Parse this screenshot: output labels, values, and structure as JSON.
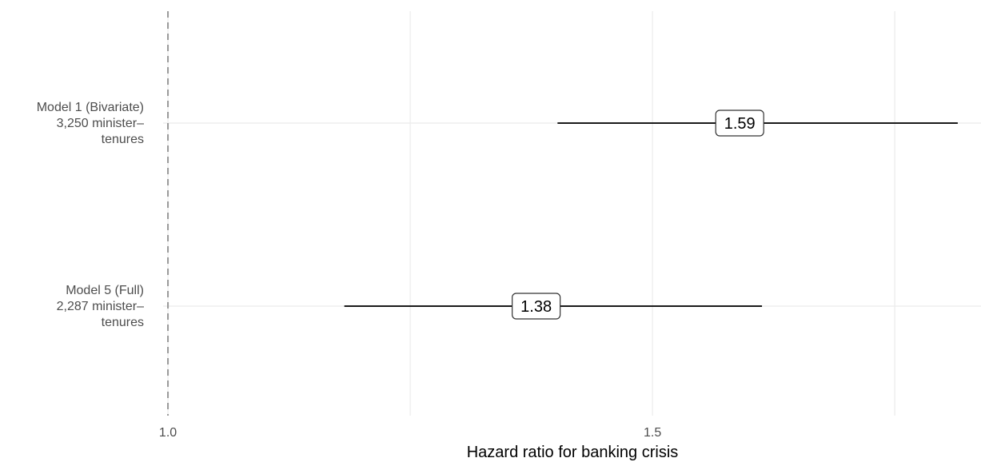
{
  "chart_data": {
    "type": "forest",
    "title": "",
    "xlabel": "Hazard ratio for banking crisis",
    "ylabel": "",
    "xlim": [
      0.995,
      1.839
    ],
    "x_ticks": [
      1.0,
      1.5
    ],
    "x_tick_labels": [
      "1.0",
      "1.5"
    ],
    "minor_gridlines": [
      1.25,
      1.75
    ],
    "reference_line": 1.0,
    "grid": true,
    "models": [
      {
        "label_lines": [
          "Model 1 (Bivariate)",
          "3,250 minister–",
          "tenures"
        ],
        "estimate": 1.59,
        "estimate_label": "1.59",
        "ci_low": 1.402,
        "ci_high": 1.815
      },
      {
        "label_lines": [
          "Model 5 (Full)",
          "2,287 minister–",
          "tenures"
        ],
        "estimate": 1.38,
        "estimate_label": "1.38",
        "ci_low": 1.182,
        "ci_high": 1.613
      }
    ]
  }
}
